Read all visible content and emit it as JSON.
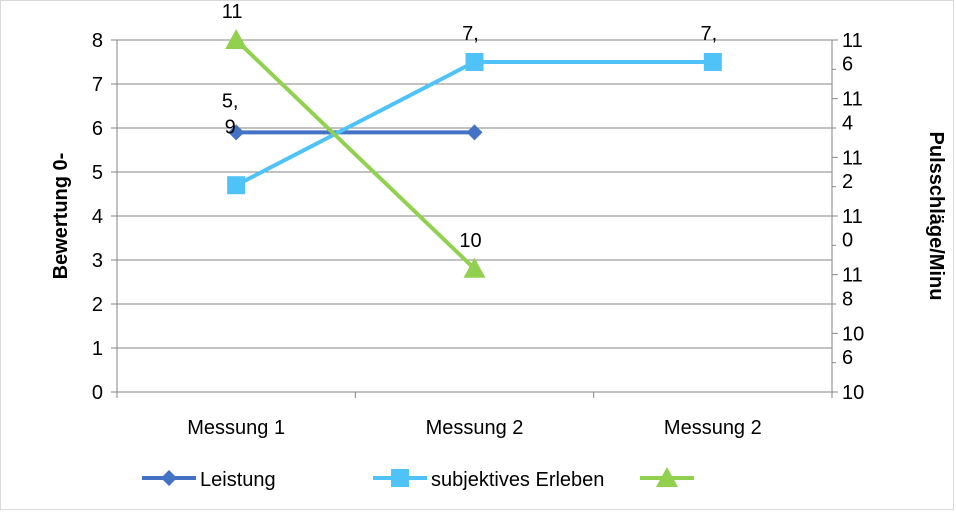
{
  "chart_data": {
    "type": "line",
    "categories": [
      "Messung 1",
      "Messung 2",
      "Messung 2"
    ],
    "y_left": {
      "label": "Bewertung 0-",
      "lim": [
        0,
        8
      ],
      "ticks": [
        "0",
        "1",
        "2",
        "3",
        "4",
        "5",
        "6",
        "7",
        "8"
      ]
    },
    "y_right": {
      "label": "Pulsschläge/Minu",
      "lim": [
        106,
        116
      ],
      "ticks": [
        [
          "10",
          "6"
        ],
        [
          "10",
          "8"
        ],
        [
          "11",
          "0"
        ],
        [
          "11",
          "2"
        ],
        [
          "11",
          "4"
        ],
        [
          "11",
          "6"
        ],
        [
          "11",
          ""
        ]
      ]
    },
    "grid": true,
    "legend_position": "bottom",
    "series": [
      {
        "name": "Leistung",
        "axis": "left",
        "color": "#4472c4",
        "marker": "diamond",
        "values": [
          5.9,
          5.9,
          null
        ],
        "labels": [
          [
            "5,",
            "9"
          ],
          null,
          null
        ]
      },
      {
        "name": "subjektives Erleben",
        "axis": "left",
        "color": "#4fc3f7",
        "marker": "square",
        "values": [
          4.7,
          7.5,
          7.5
        ],
        "labels": [
          null,
          [
            "7,"
          ],
          [
            "7,"
          ]
        ]
      },
      {
        "name": "",
        "axis": "right",
        "color": "#92d050",
        "marker": "triangle",
        "values": [
          116,
          109.5,
          null
        ],
        "labels": [
          [
            "11"
          ],
          [
            "10"
          ],
          null
        ]
      }
    ]
  }
}
